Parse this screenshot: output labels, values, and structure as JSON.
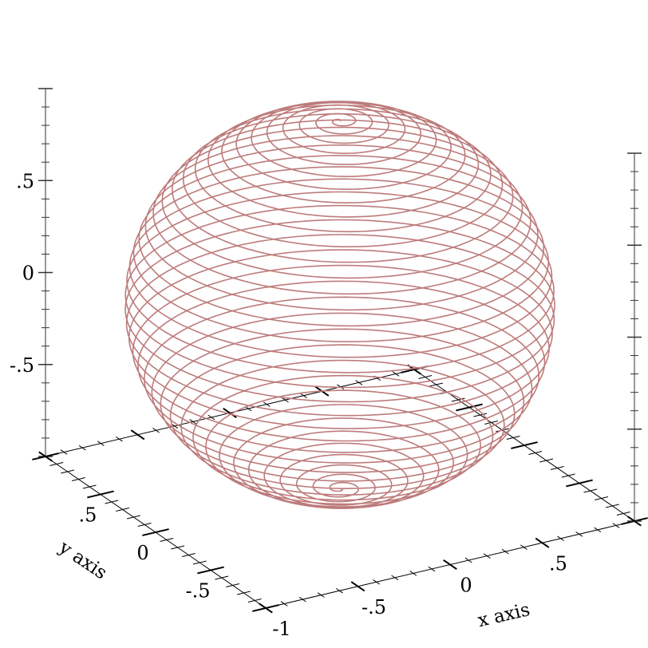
{
  "chart_data": {
    "type": "line3d",
    "description_of_curve": "",
    "curve": {
      "kind": "spherical-spiral",
      "radius": 1,
      "turns": 40,
      "color": "#bd7b7b"
    },
    "xlabel": "x axis",
    "ylabel": "y axis",
    "zlabel": "",
    "xlim": [
      -1,
      1
    ],
    "ylim": [
      -1,
      1
    ],
    "zlim": [
      -1,
      1
    ],
    "x_ticks": [
      {
        "v": -1,
        "label": "-1"
      },
      {
        "v": -0.5,
        "label": "-.5"
      },
      {
        "v": 0,
        "label": "0"
      },
      {
        "v": 0.5,
        "label": ".5"
      }
    ],
    "y_ticks": [
      {
        "v": 0.5,
        "label": ".5"
      },
      {
        "v": 0,
        "label": "0"
      },
      {
        "v": -0.5,
        "label": "-.5"
      }
    ],
    "z_ticks": [
      {
        "v": 0.5,
        "label": ".5"
      },
      {
        "v": 0,
        "label": "0"
      },
      {
        "v": -0.5,
        "label": "-.5"
      }
    ],
    "grid": false,
    "legend": "none"
  }
}
